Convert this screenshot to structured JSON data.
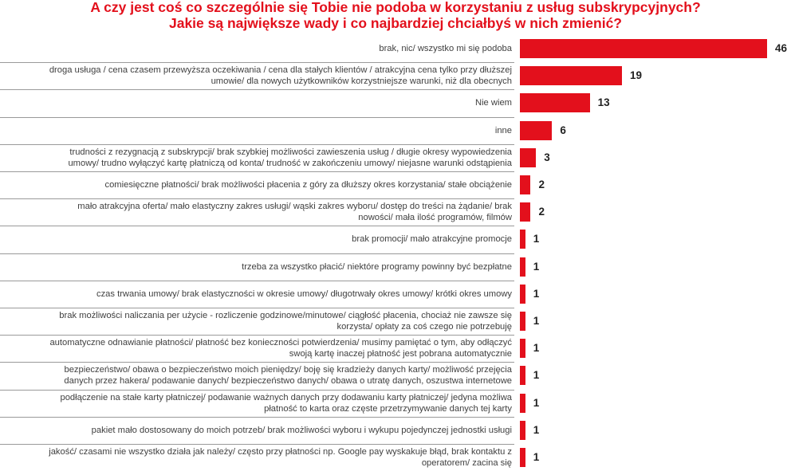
{
  "title": {
    "line1": "A czy jest coś co szczególnie się Tobie nie podoba w korzystaniu z usług subskrypcyjnych?",
    "line2": "Jakie są największe wady i co najbardziej chciałbyś w nich zmienić?"
  },
  "colors": {
    "bar": "#e3101c",
    "title": "#e3101c"
  },
  "chart_data": {
    "type": "bar",
    "orientation": "horizontal",
    "title": "A czy jest coś co szczególnie się Tobie nie podoba w korzystaniu z usług subskrypcyjnych? Jakie są największe wady i co najbardziej chciałbyś w nich zmienić?",
    "xlabel": "",
    "ylabel": "",
    "xlim": [
      0,
      46
    ],
    "categories": [
      "brak, nic/ wszystko mi się podoba",
      "droga usługa / cena czasem przewyższa oczekiwania / cena dla stałych klientów / atrakcyjna cena tylko przy dłuższej umowie/ dla nowych użytkowników korzystniejsze warunki, niż dla obecnych",
      "Nie wiem",
      "inne",
      "trudności z rezygnacją z subskrypcji/ brak szybkiej możliwości zawieszenia usług / długie okresy wypowiedzenia umowy/  trudno wyłączyć kartę płatniczą od konta/ trudność w zakończeniu umowy/ niejasne warunki odstąpienia",
      "comiesięczne płatności/ brak możliwości płacenia z góry za dłuższy okres korzystania/ stałe obciążenie",
      "mało atrakcyjna oferta/ mało elastyczny zakres usługi/ wąski zakres wyboru/ dostęp do treści na żądanie/ brak nowości/ mała ilość programów, filmów",
      "brak promocji/ mało atrakcyjne promocje",
      "trzeba za wszystko płacić/ niektóre programy powinny być bezpłatne",
      "czas trwania umowy/ brak elastyczności w okresie umowy/ długotrwały okres umowy/ krótki okres umowy",
      "brak możliwości naliczania per użycie - rozliczenie godzinowe/minutowe/ ciągłość płacenia, chociaż nie zawsze się korzysta/ opłaty za coś czego nie potrzebuję",
      "automatyczne odnawianie płatności/ płatność bez konieczności potwierdzenia/ musimy pamiętać o tym, aby odłączyć swoją kartę inaczej płatność jest pobrana automatycznie",
      "bezpieczeństwo/ obawa o bezpieczeństwo moich pieniędzy/ boję się kradzieży danych karty/ możliwość przejęcia danych przez hakera/ podawanie danych/ bezpieczeństwo danych/  obawa o utratę danych, oszustwa internetowe",
      "podłączenie na stałe karty płatniczej/ podawanie ważnych danych przy dodawaniu karty płatniczej/ jedyna możliwa płatność to karta oraz częste przetrzymywanie danych tej karty",
      "pakiet mało dostosowany do moich potrzeb/ brak możliwości wyboru i wykupu pojedynczej jednostki usługi",
      "jakość/ czasami nie wszystko działa jak należy/ często przy płatności np. Google pay wyskakuje błąd, brak kontaktu z operatorem/ zacina się"
    ],
    "label_lines": [
      [
        "brak, nic/ wszystko mi się podoba"
      ],
      [
        "droga usługa / cena czasem przewyższa oczekiwania / cena dla stałych klientów / atrakcyjna cena tylko przy dłuższej",
        "umowie/ dla nowych użytkowników korzystniejsze warunki, niż dla obecnych"
      ],
      [
        "Nie wiem"
      ],
      [
        "inne"
      ],
      [
        "trudności z rezygnacją z subskrypcji/ brak szybkiej możliwości zawieszenia usług / długie okresy wypowiedzenia",
        "umowy/  trudno wyłączyć kartę płatniczą od konta/ trudność w zakończeniu umowy/ niejasne warunki odstąpienia"
      ],
      [
        "comiesięczne płatności/ brak możliwości płacenia z góry za dłuższy okres korzystania/ stałe obciążenie"
      ],
      [
        "mało atrakcyjna oferta/ mało elastyczny zakres usługi/ wąski zakres wyboru/ dostęp do treści na żądanie/ brak",
        "nowości/ mała ilość programów, filmów"
      ],
      [
        "brak promocji/ mało atrakcyjne promocje"
      ],
      [
        "trzeba za wszystko płacić/ niektóre programy powinny być bezpłatne"
      ],
      [
        "czas trwania umowy/ brak elastyczności w okresie umowy/ długotrwały okres umowy/ krótki okres umowy"
      ],
      [
        "brak możliwości naliczania per użycie - rozliczenie godzinowe/minutowe/ ciągłość płacenia, chociaż nie zawsze się",
        "korzysta/ opłaty za coś czego nie potrzebuję"
      ],
      [
        "automatyczne odnawianie płatności/ płatność bez konieczności potwierdzenia/ musimy pamiętać o tym, aby odłączyć",
        "swoją kartę inaczej płatność jest pobrana automatycznie"
      ],
      [
        "bezpieczeństwo/ obawa o bezpieczeństwo moich pieniędzy/ boję się kradzieży danych karty/ możliwość przejęcia",
        "danych przez hakera/ podawanie danych/ bezpieczeństwo danych/  obawa o utratę danych, oszustwa internetowe"
      ],
      [
        "podłączenie na stałe karty płatniczej/ podawanie ważnych danych przy dodawaniu karty płatniczej/ jedyna możliwa",
        "płatność to karta oraz częste przetrzymywanie danych tej karty"
      ],
      [
        "pakiet mało dostosowany do moich potrzeb/ brak możliwości wyboru i wykupu pojedynczej jednostki usługi"
      ],
      [
        "jakość/ czasami nie wszystko działa jak należy/ często przy płatności np. Google pay wyskakuje błąd, brak kontaktu z",
        "operatorem/ zacina się"
      ]
    ],
    "values": [
      46,
      19,
      13,
      6,
      3,
      2,
      2,
      1,
      1,
      1,
      1,
      1,
      1,
      1,
      1,
      1
    ]
  }
}
